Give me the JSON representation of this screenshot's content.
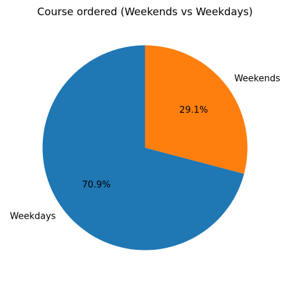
{
  "chart_data": {
    "type": "pie",
    "title": "Course ordered (Weekends vs Weekdays)",
    "categories": [
      "Weekends",
      "Weekdays"
    ],
    "values": [
      29.1,
      70.9
    ],
    "percent_labels": [
      "29.1%",
      "70.9%"
    ],
    "colors": [
      "#ff7f0e",
      "#1f77b4"
    ],
    "start_angle_deg": 90,
    "direction": "clockwise",
    "legend": "none"
  }
}
